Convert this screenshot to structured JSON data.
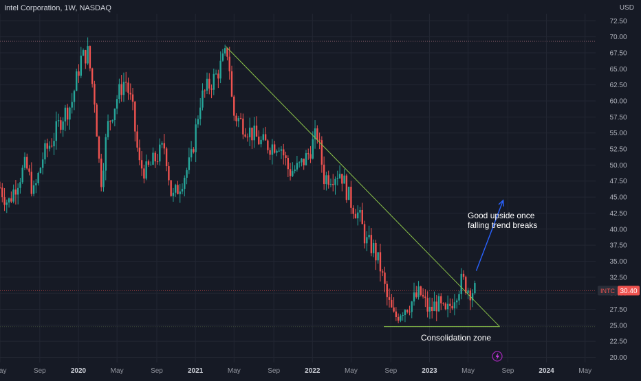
{
  "header": {
    "symbol_title": "Intel Corporation, 1W, NASDAQ",
    "currency": "USD"
  },
  "colors": {
    "background": "#161a25",
    "grid": "#232733",
    "up": "#26a69a",
    "down": "#ef5350",
    "trendline": "#8bc34a",
    "arrow": "#2962ff",
    "resistance": "#7a5560",
    "price_tag": "#ef5350"
  },
  "price_tag": {
    "symbol": "INTC",
    "value": "30.40"
  },
  "annotations": {
    "upside_line1": "Good upside once",
    "upside_line2": "falling trend breaks",
    "consolidation": "Consolidation zone"
  },
  "chart_data": {
    "type": "candlestick",
    "title": "Intel Corporation, 1W, NASDAQ",
    "ylabel": "USD",
    "ylim": [
      19.2,
      73.6
    ],
    "y_ticks": [
      "72.50",
      "70.00",
      "67.50",
      "65.00",
      "62.50",
      "60.00",
      "57.50",
      "55.00",
      "52.50",
      "50.00",
      "47.50",
      "45.00",
      "42.50",
      "40.00",
      "37.50",
      "35.00",
      "32.50",
      "30.00",
      "27.50",
      "25.00",
      "22.50",
      "20.00"
    ],
    "x_ticks": [
      {
        "label": "May",
        "year": false,
        "t": 2019.33
      },
      {
        "label": "Sep",
        "year": false,
        "t": 2019.67
      },
      {
        "label": "2020",
        "year": true,
        "t": 2020.0
      },
      {
        "label": "May",
        "year": false,
        "t": 2020.33
      },
      {
        "label": "Sep",
        "year": false,
        "t": 2020.67
      },
      {
        "label": "2021",
        "year": true,
        "t": 2021.0
      },
      {
        "label": "May",
        "year": false,
        "t": 2021.33
      },
      {
        "label": "Sep",
        "year": false,
        "t": 2021.67
      },
      {
        "label": "2022",
        "year": true,
        "t": 2022.0
      },
      {
        "label": "May",
        "year": false,
        "t": 2022.33
      },
      {
        "label": "Sep",
        "year": false,
        "t": 2022.67
      },
      {
        "label": "2023",
        "year": true,
        "t": 2023.0
      },
      {
        "label": "May",
        "year": false,
        "t": 2023.33
      },
      {
        "label": "Sep",
        "year": false,
        "t": 2023.67
      },
      {
        "label": "2024",
        "year": true,
        "t": 2024.0
      },
      {
        "label": "May",
        "year": false,
        "t": 2024.33
      }
    ],
    "x_range": [
      2019.33,
      2024.42
    ],
    "last_price": 30.4,
    "resistance_level": 69.3,
    "support_level": 24.8,
    "falling_trendline": [
      [
        2021.26,
        68.5
      ],
      [
        2023.6,
        24.8
      ]
    ],
    "support_line": [
      [
        2022.61,
        24.8
      ],
      [
        2023.6,
        24.8
      ]
    ],
    "projection_arrow": [
      [
        2023.4,
        33.5
      ],
      [
        2023.63,
        44.5
      ]
    ],
    "closes": [
      {
        "t": 2019.33,
        "v": 46.5
      },
      {
        "t": 2019.4,
        "v": 44.0
      },
      {
        "t": 2019.48,
        "v": 47.5
      },
      {
        "t": 2019.55,
        "v": 50.0
      },
      {
        "t": 2019.62,
        "v": 45.5
      },
      {
        "t": 2019.7,
        "v": 51.5
      },
      {
        "t": 2019.78,
        "v": 54.0
      },
      {
        "t": 2019.86,
        "v": 57.5
      },
      {
        "t": 2019.94,
        "v": 59.5
      },
      {
        "t": 2020.02,
        "v": 66.5
      },
      {
        "t": 2020.08,
        "v": 67.5
      },
      {
        "t": 2020.14,
        "v": 60.0
      },
      {
        "t": 2020.19,
        "v": 47.0
      },
      {
        "t": 2020.25,
        "v": 56.0
      },
      {
        "t": 2020.33,
        "v": 60.5
      },
      {
        "t": 2020.4,
        "v": 63.5
      },
      {
        "t": 2020.46,
        "v": 59.0
      },
      {
        "t": 2020.52,
        "v": 50.0
      },
      {
        "t": 2020.58,
        "v": 49.0
      },
      {
        "t": 2020.66,
        "v": 51.0
      },
      {
        "t": 2020.74,
        "v": 53.0
      },
      {
        "t": 2020.8,
        "v": 44.5
      },
      {
        "t": 2020.88,
        "v": 47.5
      },
      {
        "t": 2020.96,
        "v": 50.5
      },
      {
        "t": 2021.04,
        "v": 60.0
      },
      {
        "t": 2021.1,
        "v": 62.0
      },
      {
        "t": 2021.18,
        "v": 64.0
      },
      {
        "t": 2021.24,
        "v": 66.5
      },
      {
        "t": 2021.28,
        "v": 68.0
      },
      {
        "t": 2021.32,
        "v": 58.0
      },
      {
        "t": 2021.4,
        "v": 56.5
      },
      {
        "t": 2021.48,
        "v": 55.0
      },
      {
        "t": 2021.56,
        "v": 53.5
      },
      {
        "t": 2021.64,
        "v": 53.0
      },
      {
        "t": 2021.72,
        "v": 53.5
      },
      {
        "t": 2021.8,
        "v": 49.0
      },
      {
        "t": 2021.88,
        "v": 49.5
      },
      {
        "t": 2021.96,
        "v": 51.5
      },
      {
        "t": 2022.04,
        "v": 55.0
      },
      {
        "t": 2022.1,
        "v": 48.0
      },
      {
        "t": 2022.18,
        "v": 48.5
      },
      {
        "t": 2022.24,
        "v": 49.0
      },
      {
        "t": 2022.32,
        "v": 44.5
      },
      {
        "t": 2022.4,
        "v": 42.0
      },
      {
        "t": 2022.46,
        "v": 38.0
      },
      {
        "t": 2022.52,
        "v": 37.0
      },
      {
        "t": 2022.58,
        "v": 34.0
      },
      {
        "t": 2022.64,
        "v": 29.0
      },
      {
        "t": 2022.7,
        "v": 26.0
      },
      {
        "t": 2022.76,
        "v": 27.5
      },
      {
        "t": 2022.84,
        "v": 28.5
      },
      {
        "t": 2022.92,
        "v": 30.0
      },
      {
        "t": 2023.0,
        "v": 27.0
      },
      {
        "t": 2023.06,
        "v": 28.5
      },
      {
        "t": 2023.14,
        "v": 26.5
      },
      {
        "t": 2023.22,
        "v": 30.0
      },
      {
        "t": 2023.28,
        "v": 32.0
      },
      {
        "t": 2023.34,
        "v": 30.5
      },
      {
        "t": 2023.4,
        "v": 30.4
      }
    ]
  }
}
